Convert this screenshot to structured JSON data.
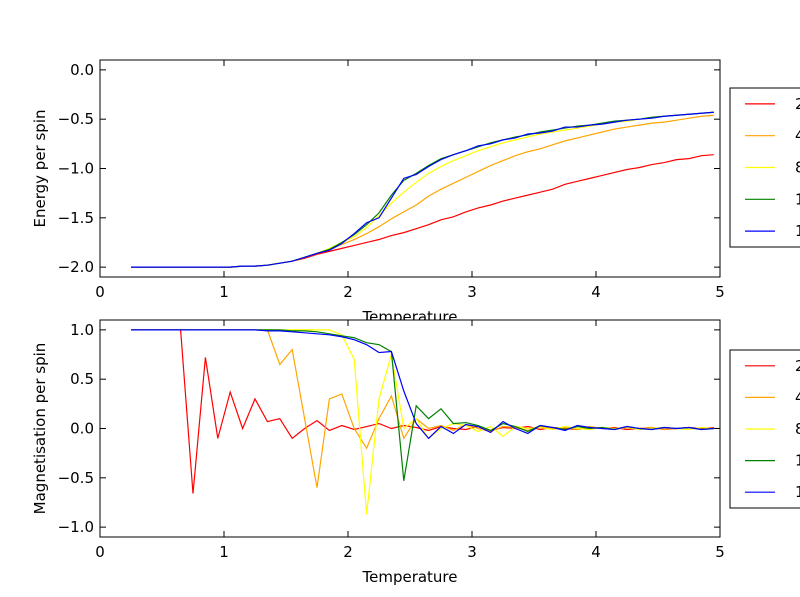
{
  "chart_data": [
    {
      "type": "line",
      "xlabel": "Temperature",
      "ylabel": "Energy per spin",
      "xlim": [
        0,
        5
      ],
      "ylim": [
        -2.1,
        0.1
      ],
      "xticks": [
        0,
        1,
        2,
        3,
        4,
        5
      ],
      "yticks": [
        {
          "value": -2.0,
          "label": "−2.0"
        },
        {
          "value": -1.5,
          "label": "−1.5"
        },
        {
          "value": -1.0,
          "label": "−1.0"
        },
        {
          "value": -0.5,
          "label": "−0.5"
        },
        {
          "value": 0.0,
          "label": "0.0"
        }
      ],
      "x": [
        0.25,
        0.35,
        0.45,
        0.55,
        0.65,
        0.75,
        0.85,
        0.95,
        1.05,
        1.15,
        1.25,
        1.35,
        1.45,
        1.55,
        1.65,
        1.75,
        1.85,
        1.95,
        2.05,
        2.15,
        2.25,
        2.35,
        2.45,
        2.55,
        2.65,
        2.75,
        2.85,
        2.95,
        3.05,
        3.15,
        3.25,
        3.35,
        3.45,
        3.55,
        3.65,
        3.75,
        3.85,
        3.95,
        4.05,
        4.15,
        4.25,
        4.35,
        4.45,
        4.55,
        4.65,
        4.75,
        4.85,
        4.95
      ],
      "series": [
        {
          "name": "2",
          "color": "#ff0000",
          "values": [
            -2,
            -2,
            -2,
            -2,
            -2,
            -2,
            -2,
            -2,
            -2,
            -1.99,
            -1.99,
            -1.98,
            -1.96,
            -1.94,
            -1.91,
            -1.87,
            -1.84,
            -1.81,
            -1.78,
            -1.75,
            -1.72,
            -1.68,
            -1.65,
            -1.61,
            -1.57,
            -1.52,
            -1.49,
            -1.44,
            -1.4,
            -1.37,
            -1.33,
            -1.3,
            -1.27,
            -1.24,
            -1.21,
            -1.16,
            -1.13,
            -1.1,
            -1.07,
            -1.04,
            -1.01,
            -0.99,
            -0.96,
            -0.94,
            -0.91,
            -0.9,
            -0.87,
            -0.86
          ]
        },
        {
          "name": "4",
          "color": "#ffa500",
          "values": [
            -2,
            -2,
            -2,
            -2,
            -2,
            -2,
            -2,
            -2,
            -2,
            -1.99,
            -1.99,
            -1.98,
            -1.96,
            -1.94,
            -1.9,
            -1.86,
            -1.82,
            -1.77,
            -1.72,
            -1.66,
            -1.59,
            -1.51,
            -1.44,
            -1.37,
            -1.28,
            -1.21,
            -1.15,
            -1.09,
            -1.03,
            -0.97,
            -0.92,
            -0.87,
            -0.83,
            -0.8,
            -0.76,
            -0.72,
            -0.69,
            -0.66,
            -0.63,
            -0.6,
            -0.58,
            -0.56,
            -0.54,
            -0.53,
            -0.51,
            -0.49,
            -0.47,
            -0.46
          ]
        },
        {
          "name": "8",
          "color": "#ffff00",
          "values": [
            -2,
            -2,
            -2,
            -2,
            -2,
            -2,
            -2,
            -2,
            -2,
            -1.99,
            -1.99,
            -1.98,
            -1.96,
            -1.94,
            -1.9,
            -1.86,
            -1.81,
            -1.75,
            -1.69,
            -1.6,
            -1.48,
            -1.35,
            -1.24,
            -1.14,
            -1.05,
            -0.98,
            -0.92,
            -0.87,
            -0.82,
            -0.78,
            -0.74,
            -0.71,
            -0.68,
            -0.65,
            -0.63,
            -0.61,
            -0.59,
            -0.57,
            -0.55,
            -0.53,
            -0.52,
            -0.5,
            -0.49,
            -0.47,
            -0.46,
            -0.45,
            -0.44,
            -0.43
          ]
        },
        {
          "name": "1",
          "color": "#008000",
          "values": [
            -2,
            -2,
            -2,
            -2,
            -2,
            -2,
            -2,
            -2,
            -2,
            -1.99,
            -1.99,
            -1.98,
            -1.96,
            -1.94,
            -1.9,
            -1.86,
            -1.82,
            -1.75,
            -1.67,
            -1.57,
            -1.45,
            -1.27,
            -1.12,
            -1.05,
            -0.97,
            -0.9,
            -0.86,
            -0.82,
            -0.78,
            -0.74,
            -0.71,
            -0.68,
            -0.66,
            -0.63,
            -0.61,
            -0.59,
            -0.57,
            -0.56,
            -0.54,
            -0.52,
            -0.51,
            -0.5,
            -0.48,
            -0.47,
            -0.46,
            -0.45,
            -0.44,
            -0.43
          ]
        },
        {
          "name": "1",
          "color": "#0000ff",
          "values": [
            -2,
            -2,
            -2,
            -2,
            -2,
            -2,
            -2,
            -2,
            -2,
            -1.99,
            -1.99,
            -1.98,
            -1.96,
            -1.94,
            -1.9,
            -1.86,
            -1.83,
            -1.76,
            -1.66,
            -1.55,
            -1.5,
            -1.3,
            -1.1,
            -1.06,
            -0.98,
            -0.91,
            -0.86,
            -0.82,
            -0.77,
            -0.75,
            -0.71,
            -0.69,
            -0.65,
            -0.64,
            -0.62,
            -0.58,
            -0.58,
            -0.56,
            -0.55,
            -0.53,
            -0.51,
            -0.5,
            -0.49,
            -0.47,
            -0.46,
            -0.45,
            -0.44,
            -0.43
          ]
        }
      ]
    },
    {
      "type": "line",
      "xlabel": "Temperature",
      "ylabel": "Magnetisation per spin",
      "xlim": [
        0,
        5
      ],
      "ylim": [
        -1.1,
        1.1
      ],
      "xticks": [
        0,
        1,
        2,
        3,
        4,
        5
      ],
      "yticks": [
        {
          "value": -1.0,
          "label": "−1.0"
        },
        {
          "value": -0.5,
          "label": "−0.5"
        },
        {
          "value": 0.0,
          "label": "0.0"
        },
        {
          "value": 0.5,
          "label": "0.5"
        },
        {
          "value": 1.0,
          "label": "1.0"
        }
      ],
      "x": [
        0.25,
        0.35,
        0.45,
        0.55,
        0.65,
        0.75,
        0.85,
        0.95,
        1.05,
        1.15,
        1.25,
        1.35,
        1.45,
        1.55,
        1.65,
        1.75,
        1.85,
        1.95,
        2.05,
        2.15,
        2.25,
        2.35,
        2.45,
        2.55,
        2.65,
        2.75,
        2.85,
        2.95,
        3.05,
        3.15,
        3.25,
        3.35,
        3.45,
        3.55,
        3.65,
        3.75,
        3.85,
        3.95,
        4.05,
        4.15,
        4.25,
        4.35,
        4.45,
        4.55,
        4.65,
        4.75,
        4.85,
        4.95
      ],
      "series": [
        {
          "name": "2",
          "color": "#ff0000",
          "values": [
            1,
            1,
            1,
            1,
            1,
            -0.66,
            0.72,
            -0.1,
            0.37,
            0,
            0.3,
            0.07,
            0.1,
            -0.1,
            0,
            0.08,
            -0.02,
            0.03,
            -0.01,
            0.02,
            0.05,
            0,
            0.03,
            0.01,
            -0.02,
            0.02,
            0,
            -0.01,
            0.02,
            -0.02,
            0.01,
            0,
            0.02,
            -0.01,
            0.01,
            0,
            -0.01,
            0.01,
            0,
            0.01,
            -0.01,
            0,
            0.01,
            -0.01,
            0,
            0.01,
            0,
            0.01
          ]
        },
        {
          "name": "4",
          "color": "#ffa500",
          "values": [
            1,
            1,
            1,
            1,
            1,
            1,
            1,
            1,
            1,
            1,
            1,
            1,
            0.65,
            0.8,
            0.1,
            -0.6,
            0.3,
            0.35,
            0,
            -0.2,
            0.1,
            0.33,
            -0.1,
            0.1,
            0,
            0.03,
            -0.02,
            0.04,
            0,
            -0.03,
            0.02,
            0.01,
            -0.02,
            0.02,
            0,
            0.01,
            -0.01,
            0.02,
            0,
            -0.01,
            0.01,
            0,
            0.01,
            -0.01,
            0,
            0.01,
            -0.01,
            0
          ]
        },
        {
          "name": "8",
          "color": "#ffff00",
          "values": [
            1,
            1,
            1,
            1,
            1,
            1,
            1,
            1,
            1,
            1,
            1,
            1,
            1,
            1,
            1,
            1,
            1,
            0.95,
            0.7,
            -0.87,
            0.3,
            0.75,
            0,
            0.1,
            -0.1,
            0,
            0.05,
            0.03,
            -0.03,
            0.02,
            -0.08,
            0.02,
            0,
            0.01,
            -0.01,
            0.02,
            0,
            -0.01,
            0.01,
            0,
            0.01,
            -0.01,
            0,
            0.01,
            0,
            -0.01,
            0.01,
            0
          ]
        },
        {
          "name": "1",
          "color": "#008000",
          "values": [
            1,
            1,
            1,
            1,
            1,
            1,
            1,
            1,
            1,
            1,
            1,
            1,
            1,
            0.99,
            0.99,
            0.98,
            0.96,
            0.94,
            0.92,
            0.87,
            0.85,
            0.78,
            -0.53,
            0.23,
            0.1,
            0.2,
            0.05,
            0.06,
            0.03,
            -0.02,
            0.05,
            0.02,
            -0.03,
            0.03,
            0.01,
            -0.01,
            0.02,
            0,
            0.01,
            -0.01,
            0.02,
            0,
            -0.01,
            0.01,
            0,
            0.01,
            -0.01,
            0
          ]
        },
        {
          "name": "1",
          "color": "#0000ff",
          "values": [
            1,
            1,
            1,
            1,
            1,
            1,
            1,
            1,
            1,
            1,
            1,
            0.99,
            0.99,
            0.98,
            0.97,
            0.96,
            0.95,
            0.93,
            0.9,
            0.85,
            0.77,
            0.78,
            0.38,
            0.05,
            -0.1,
            0.02,
            -0.05,
            0.04,
            0.02,
            -0.04,
            0.07,
            0,
            -0.05,
            0.03,
            0.01,
            -0.02,
            0.03,
            0.01,
            0,
            -0.01,
            0.02,
            0,
            -0.01,
            0.01,
            0,
            0.01,
            -0.01,
            0
          ]
        }
      ]
    }
  ]
}
